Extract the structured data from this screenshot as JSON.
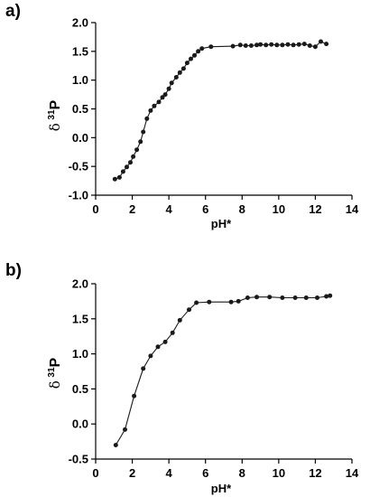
{
  "chart_data": [
    {
      "type": "line",
      "panel_label": "a)",
      "xlabel": "pH*",
      "ylabel": {
        "symbol": "δ",
        "superscript": "31",
        "nucleus": "P"
      },
      "xlim": [
        0,
        14
      ],
      "ylim": [
        -1.0,
        2.0
      ],
      "xticks": [
        0,
        2,
        4,
        6,
        8,
        10,
        12,
        14
      ],
      "yticks": [
        -1.0,
        -0.5,
        0.0,
        0.5,
        1.0,
        1.5,
        2.0
      ],
      "ytick_labels": [
        "-1.0",
        "-0.5",
        "0.0",
        "0.5",
        "1.0",
        "1.5",
        "2.0"
      ],
      "grid": false,
      "marker": "filled-circle",
      "color": "#1a1a1a",
      "x": [
        1.05,
        1.3,
        1.5,
        1.7,
        1.9,
        2.05,
        2.25,
        2.45,
        2.6,
        2.8,
        3.0,
        3.2,
        3.45,
        3.65,
        3.8,
        4.0,
        4.15,
        4.4,
        4.6,
        4.8,
        5.0,
        5.2,
        5.4,
        5.6,
        5.8,
        6.3,
        7.5,
        7.9,
        8.2,
        8.5,
        8.8,
        9.0,
        9.3,
        9.6,
        9.9,
        10.2,
        10.5,
        10.8,
        11.1,
        11.4,
        11.7,
        12.0,
        12.3,
        12.6
      ],
      "y": [
        -0.72,
        -0.69,
        -0.59,
        -0.51,
        -0.43,
        -0.33,
        -0.21,
        -0.07,
        0.1,
        0.33,
        0.47,
        0.55,
        0.62,
        0.7,
        0.75,
        0.85,
        0.95,
        1.05,
        1.13,
        1.2,
        1.3,
        1.37,
        1.43,
        1.5,
        1.55,
        1.58,
        1.59,
        1.61,
        1.6,
        1.6,
        1.61,
        1.62,
        1.61,
        1.62,
        1.61,
        1.61,
        1.62,
        1.61,
        1.62,
        1.63,
        1.6,
        1.58,
        1.67,
        1.63
      ]
    },
    {
      "type": "line",
      "panel_label": "b)",
      "xlabel": "pH*",
      "ylabel": {
        "symbol": "δ",
        "superscript": "31",
        "nucleus": "P"
      },
      "xlim": [
        0,
        14
      ],
      "ylim": [
        -0.5,
        2.0
      ],
      "xticks": [
        0,
        2,
        4,
        6,
        8,
        10,
        12,
        14
      ],
      "yticks": [
        -0.5,
        0.0,
        0.5,
        1.0,
        1.5,
        2.0
      ],
      "ytick_labels": [
        "-0.5",
        "0.0",
        "0.5",
        "1.0",
        "1.5",
        "2.0"
      ],
      "grid": false,
      "marker": "filled-circle",
      "color": "#1a1a1a",
      "x": [
        1.1,
        1.6,
        2.1,
        2.6,
        3.0,
        3.4,
        3.8,
        4.2,
        4.6,
        5.1,
        5.5,
        6.2,
        7.4,
        7.8,
        8.3,
        8.8,
        9.5,
        10.2,
        10.9,
        11.5,
        12.1,
        12.6,
        12.8
      ],
      "y": [
        -0.3,
        -0.08,
        0.4,
        0.79,
        0.97,
        1.1,
        1.17,
        1.3,
        1.48,
        1.63,
        1.73,
        1.74,
        1.74,
        1.75,
        1.8,
        1.81,
        1.81,
        1.8,
        1.8,
        1.8,
        1.8,
        1.82,
        1.83
      ]
    }
  ]
}
